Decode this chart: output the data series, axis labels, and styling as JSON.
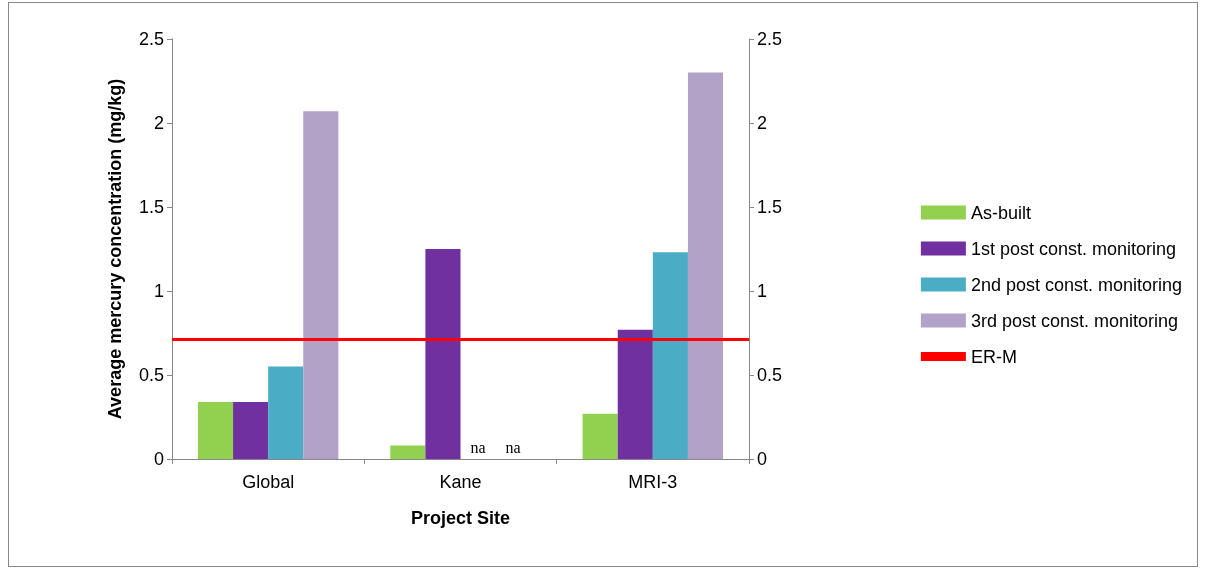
{
  "chart_data": {
    "type": "bar",
    "xlabel": "Project Site",
    "ylabel": "Average mercury concentration (mg/kg)",
    "categories": [
      "Global",
      "Kane",
      "MRI-3"
    ],
    "series": [
      {
        "name": "As-built",
        "color": "#92d050",
        "values": [
          0.34,
          0.08,
          0.27
        ]
      },
      {
        "name": "1st post const. monitoring",
        "color": "#7030a0",
        "values": [
          0.34,
          1.25,
          0.77
        ]
      },
      {
        "name": "2nd post const. monitoring",
        "color": "#4bacc6",
        "values": [
          0.55,
          null,
          1.23
        ],
        "value_labels": [
          null,
          "na",
          null
        ]
      },
      {
        "name": "3rd post const. monitoring",
        "color": "#b3a2c7",
        "values": [
          2.07,
          null,
          2.3
        ],
        "value_labels": [
          null,
          "na",
          null
        ]
      }
    ],
    "ylim": [
      0,
      2.5
    ],
    "yticks": [
      0,
      0.5,
      1,
      1.5,
      2,
      2.5
    ],
    "y2lim": [
      0,
      2.5
    ],
    "y2ticks": [
      0,
      0.5,
      1,
      1.5,
      2,
      2.5
    ],
    "ref_lines": [
      {
        "axis": "y",
        "value": 0.71,
        "label": "ER-M",
        "color": "#ff0000"
      }
    ],
    "grid": false,
    "legend": "right"
  }
}
